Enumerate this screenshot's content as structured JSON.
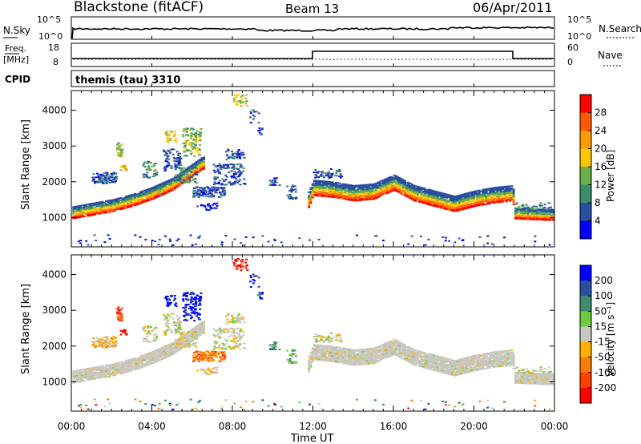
{
  "header": {
    "station": "Blackstone (fitACF)",
    "beam": "Beam 13",
    "date": "06/Apr/2011"
  },
  "strips": {
    "nsky_label": "N.Sky",
    "nsearch_label": "N.Search",
    "freq_label_1": "Freq.",
    "freq_label_2": "[MHz]",
    "nave_label": "Nave",
    "cpid_label": "CPID",
    "cpid_value": "themis (tau) 3310",
    "nsky_ticks": [
      "10^5",
      "10^0"
    ],
    "nsearch_ticks": [
      "10^5",
      "10^0"
    ],
    "freq_ticks": [
      "18",
      "8"
    ],
    "nave_ticks": [
      "60",
      "0"
    ]
  },
  "x_ticks": [
    "00:00",
    "04:00",
    "08:00",
    "12:00",
    "16:00",
    "20:00",
    "00:00"
  ],
  "x_label": "Time UT",
  "y_ticks": [
    "4000",
    "3000",
    "2000",
    "1000"
  ],
  "y_label": "Slant Range [km]",
  "power_scale": {
    "title": "Power [dB]",
    "ticks": [
      "28",
      "24",
      "20",
      "16",
      "12",
      "8",
      "4"
    ],
    "colors": [
      "#ff0000",
      "#ff5a00",
      "#ff9a00",
      "#ffc800",
      "#6ab04c",
      "#3c8c6e",
      "#2a4fa0",
      "#0000ff"
    ]
  },
  "velocity_scale": {
    "title": "Velocity [m s⁻¹]",
    "ticks": [
      "200",
      "100",
      "50",
      "15",
      "-15",
      "-50",
      "-100",
      "-200"
    ],
    "colors": [
      "#0000ff",
      "#2a4fa0",
      "#3c8c6e",
      "#6ccc3a",
      "#c8c8c0",
      "#ffb000",
      "#ff7a00",
      "#ff4000",
      "#ff0000"
    ]
  },
  "chart_data": [
    {
      "type": "heatmap",
      "name": "power",
      "xlabel": "Time UT",
      "ylabel": "Slant Range [km]",
      "xlim": [
        0,
        24
      ],
      "ylim": [
        180,
        4550
      ],
      "colorbar_label": "Power [dB]",
      "colorbar_ticks": [
        4,
        8,
        12,
        16,
        20,
        24,
        28
      ],
      "main_echo_band_km": [
        [
          0.0,
          1100
        ],
        [
          1.0,
          1200
        ],
        [
          2.0,
          1300
        ],
        [
          3.0,
          1450
        ],
        [
          4.0,
          1650
        ],
        [
          5.0,
          1900
        ],
        [
          6.0,
          2300
        ],
        [
          6.5,
          2500
        ],
        [
          11.7,
          1350
        ],
        [
          12.0,
          1750
        ],
        [
          13.0,
          1700
        ],
        [
          14.0,
          1600
        ],
        [
          15.0,
          1650
        ],
        [
          16.0,
          1900
        ],
        [
          17.0,
          1600
        ],
        [
          18.0,
          1450
        ],
        [
          19.0,
          1300
        ],
        [
          20.0,
          1450
        ],
        [
          21.0,
          1550
        ],
        [
          21.9,
          1600
        ],
        [
          22.0,
          1100
        ],
        [
          24.0,
          1050
        ]
      ]
    },
    {
      "type": "heatmap",
      "name": "velocity",
      "xlabel": "Time UT",
      "ylabel": "Slant Range [km]",
      "xlim": [
        0,
        24
      ],
      "ylim": [
        180,
        4550
      ],
      "colorbar_label": "Velocity [m s-1]",
      "colorbar_ticks": [
        -200,
        -100,
        -50,
        -15,
        15,
        50,
        100,
        200
      ]
    }
  ]
}
